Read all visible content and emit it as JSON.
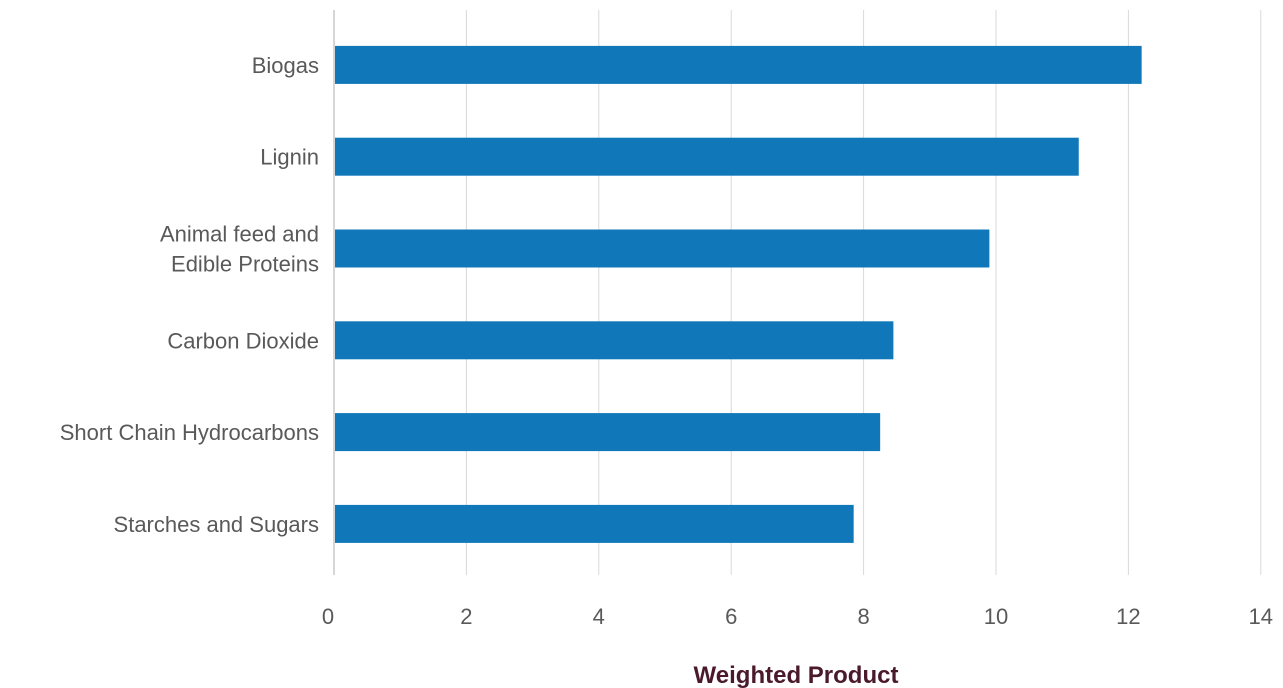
{
  "chart_data": {
    "type": "bar",
    "orientation": "horizontal",
    "categories": [
      "Biogas",
      "Lignin",
      "Animal feed and Edible Proteins",
      "Carbon Dioxide",
      "Short Chain Hydrocarbons",
      "Starches and Sugars"
    ],
    "category_lines": [
      [
        "Biogas"
      ],
      [
        "Lignin"
      ],
      [
        "Animal feed and",
        "Edible Proteins"
      ],
      [
        "Carbon Dioxide"
      ],
      [
        "Short Chain Hydrocarbons"
      ],
      [
        "Starches and Sugars"
      ]
    ],
    "values": [
      12.2,
      11.25,
      9.9,
      8.45,
      8.25,
      7.85
    ],
    "xlabel": "Weighted Product",
    "ylabel": "",
    "xlim": [
      0,
      14
    ],
    "xticks": [
      0,
      2,
      4,
      6,
      8,
      10,
      12,
      14
    ],
    "grid": true,
    "bar_color": "#1077b8",
    "grid_color": "#d9d9d9",
    "title_color": "#4a1a2c"
  }
}
